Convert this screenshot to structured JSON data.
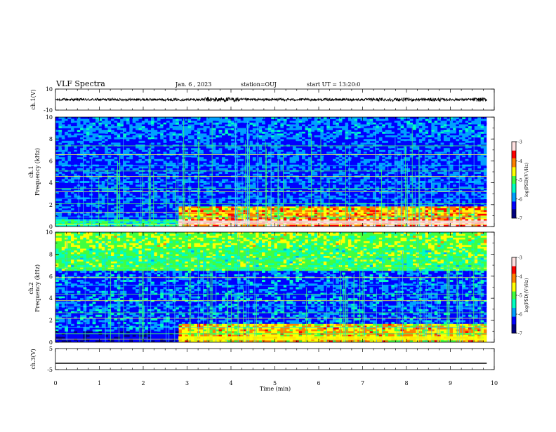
{
  "header": {
    "title": "VLF Spectra",
    "date": "Jan. 6 , 2023",
    "station": "station=OUJ",
    "start": "start UT = 13:20:0"
  },
  "colorbar": {
    "ticks": [
      "-3",
      "-4",
      "-5",
      "-6",
      "-7"
    ],
    "label": "log(PSD)(V²/Hz)",
    "colors": [
      "#000080",
      "#0000ff",
      "#00a0ff",
      "#00ffc0",
      "#40ff40",
      "#ffff00",
      "#ff8000",
      "#ff0000",
      "#ffe0e0"
    ]
  },
  "chart_data": [
    {
      "type": "line",
      "name": "ch1-waveform",
      "ylabel": "ch.1(V)",
      "ylim": [
        -10,
        10
      ],
      "ytick_labels": [
        "10",
        "-10"
      ],
      "xlim": [
        0,
        10
      ],
      "series": [
        {
          "values_note_mean": 0,
          "amplitude_approx": 2
        }
      ]
    },
    {
      "type": "heatmap",
      "name": "ch1-spectrogram",
      "ylabel": "ch.1\nFrequency (kHz)",
      "ylabel_lines": [
        "ch.1",
        "Frequency (kHz)"
      ],
      "xlim": [
        0,
        10
      ],
      "data_xmax": 9.83,
      "ylim": [
        0,
        10
      ],
      "ytick_labels": [
        "0",
        "2",
        "4",
        "6",
        "8",
        "10"
      ],
      "colorscale_range": [
        -7,
        -3
      ],
      "colorscale_label": "log(PSD)(V²/Hz)"
    },
    {
      "type": "heatmap",
      "name": "ch2-spectrogram",
      "ylabel_lines": [
        "ch.2",
        "Frequency (kHz)"
      ],
      "xlim": [
        0,
        10
      ],
      "data_xmax": 9.83,
      "ylim": [
        0,
        10
      ],
      "ytick_labels": [
        "0",
        "2",
        "4",
        "6",
        "8",
        "10"
      ],
      "colorscale_range": [
        -7,
        -3
      ],
      "colorscale_label": "log(PSD)(V²/Hz)"
    },
    {
      "type": "line",
      "name": "ch3-waveform",
      "ylabel": "ch.3(V)",
      "ylim": [
        -5,
        5
      ],
      "ytick_labels": [
        "5",
        "-5"
      ],
      "xlim": [
        0,
        10
      ],
      "constant_value": -2
    }
  ],
  "xaxis": {
    "label": "Time (min)",
    "tick_labels": [
      "0",
      "1",
      "2",
      "3",
      "4",
      "5",
      "6",
      "7",
      "8",
      "9",
      "10"
    ]
  }
}
